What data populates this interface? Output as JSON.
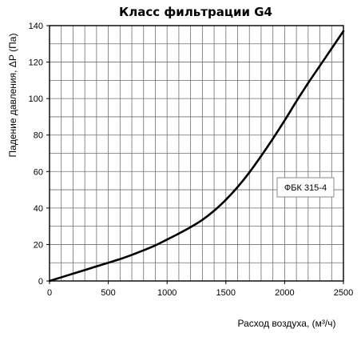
{
  "chart_data": {
    "type": "line",
    "title": "Класс фильтрации G4",
    "xlabel": "Расход воздуха, (м³/ч)",
    "ylabel": "Падение давления, ΔР (Па)",
    "xlim": [
      0,
      2500
    ],
    "ylim": [
      0,
      140
    ],
    "x_ticks": [
      0,
      500,
      1000,
      1500,
      2000,
      2500
    ],
    "y_ticks": [
      0,
      20,
      40,
      60,
      80,
      100,
      120,
      140
    ],
    "x_minor_step": 100,
    "y_minor_step": 10,
    "grid": true,
    "legend_placement": "right",
    "series": [
      {
        "name": "ФБК 315-4",
        "color": "#000000",
        "x": [
          0,
          100,
          200,
          300,
          400,
          500,
          600,
          700,
          800,
          900,
          1000,
          1100,
          1200,
          1300,
          1400,
          1500,
          1600,
          1700,
          1800,
          1900,
          2000,
          2100,
          2200,
          2300,
          2400,
          2500
        ],
        "y": [
          0,
          2,
          4,
          6,
          8,
          10,
          12,
          14.3,
          16.8,
          19.5,
          22.7,
          26,
          29.5,
          33.5,
          38.5,
          44.5,
          51.5,
          59.5,
          68.5,
          78,
          88,
          98.5,
          108.5,
          118,
          127.5,
          137
        ]
      }
    ]
  }
}
